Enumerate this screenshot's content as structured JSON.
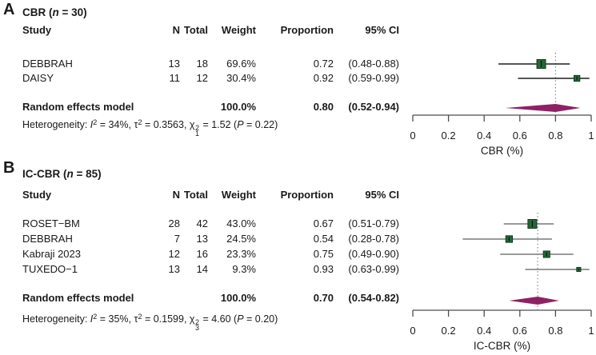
{
  "colors": {
    "square_fill": "#26663a",
    "square_border": "#0e3a1d",
    "marker_tick": "#111111",
    "diamond": "#8e2164",
    "reference_line": "#8a8a8a",
    "axis": "#4d4d4d",
    "text": "#1a1a1a"
  },
  "chart_data": [
    {
      "type": "forest",
      "panel_label": "A",
      "title_plain": "CBR (n = 30)",
      "title_segments": [
        {
          "t": "CBR ("
        },
        {
          "t": "n",
          "i": true
        },
        {
          "t": " = 30)"
        }
      ],
      "columns": [
        "Study",
        "N",
        "Total",
        "Weight",
        "Proportion",
        "95% CI"
      ],
      "rows": [
        {
          "study": "DEBBRAH",
          "n": "13",
          "total": "18",
          "weight": "69.6%",
          "proportion": "0.72",
          "ci": "(0.48-0.88)",
          "est": 0.72,
          "lo": 0.48,
          "hi": 0.88,
          "weight_pct": 69.6
        },
        {
          "study": "DAISY",
          "n": "11",
          "total": "12",
          "weight": "30.4%",
          "proportion": "0.92",
          "ci": "(0.59-0.99)",
          "est": 0.92,
          "lo": 0.59,
          "hi": 0.99,
          "weight_pct": 30.4
        }
      ],
      "pooled": {
        "label": "Random effects model",
        "weight": "100.0%",
        "proportion": "0.80",
        "ci": "(0.52-0.94)",
        "est": 0.8,
        "lo": 0.52,
        "hi": 0.94
      },
      "heterogeneity_plain": "Heterogeneity: I2 = 34%, t2 = 0.3563, chi2_1 = 1.52 (P = 0.22)",
      "heterogeneity_segments": [
        {
          "t": "Heterogeneity: "
        },
        {
          "t": "I",
          "i": true
        },
        {
          "sup": "2"
        },
        {
          "t": " = 34%, "
        },
        {
          "t": "τ"
        },
        {
          "sup": "2"
        },
        {
          "t": " = 0.3563, "
        },
        {
          "t": "χ"
        },
        {
          "stack": {
            "sup": "2",
            "sub": "1"
          }
        },
        {
          "t": " = 1.52 ("
        },
        {
          "t": "P",
          "i": true
        },
        {
          "t": " = 0.22)"
        }
      ],
      "axis": {
        "xlim": [
          0,
          1
        ],
        "ticks": [
          0,
          0.2,
          0.4,
          0.6,
          0.8,
          1
        ],
        "tick_labels": [
          "0",
          "0.2",
          "0.4",
          "0.6",
          "0.8",
          "1"
        ],
        "xlabel": "CBR (%)",
        "reference_value": 0.8
      },
      "ci_line_color": "#1f1f1f"
    },
    {
      "type": "forest",
      "panel_label": "B",
      "title_plain": "IC-CBR (n = 85)",
      "title_segments": [
        {
          "t": "IC-CBR ("
        },
        {
          "t": "n",
          "i": true
        },
        {
          "t": " = 85)"
        }
      ],
      "columns": [
        "Study",
        "N",
        "Total",
        "Weight",
        "Proportion",
        "95% CI"
      ],
      "rows": [
        {
          "study": "ROSET−BM",
          "n": "28",
          "total": "42",
          "weight": "43.0%",
          "proportion": "0.67",
          "ci": "(0.51-0.79)",
          "est": 0.67,
          "lo": 0.51,
          "hi": 0.79,
          "weight_pct": 43.0
        },
        {
          "study": "DEBBRAH",
          "n": "7",
          "total": "13",
          "weight": "24.5%",
          "proportion": "0.54",
          "ci": "(0.28-0.78)",
          "est": 0.54,
          "lo": 0.28,
          "hi": 0.78,
          "weight_pct": 24.5
        },
        {
          "study": "Kabraji 2023",
          "n": "12",
          "total": "16",
          "weight": "23.3%",
          "proportion": "0.75",
          "ci": "(0.49-0.90)",
          "est": 0.75,
          "lo": 0.49,
          "hi": 0.9,
          "weight_pct": 23.3
        },
        {
          "study": "TUXEDO−1",
          "n": "13",
          "total": "14",
          "weight": "9.3%",
          "proportion": "0.93",
          "ci": "(0.63-0.99)",
          "est": 0.93,
          "lo": 0.63,
          "hi": 0.99,
          "weight_pct": 9.3
        }
      ],
      "pooled": {
        "label": "Random effects model",
        "weight": "100.0%",
        "proportion": "0.70",
        "ci": "(0.54-0.82)",
        "est": 0.7,
        "lo": 0.54,
        "hi": 0.82
      },
      "heterogeneity_plain": "Heterogeneity: I2 = 35%, t2 = 0.1599, chi2_3 = 4.60 (P = 0.20)",
      "heterogeneity_segments": [
        {
          "t": "Heterogeneity: "
        },
        {
          "t": "I",
          "i": true
        },
        {
          "sup": "2"
        },
        {
          "t": " = 35%, "
        },
        {
          "t": "τ"
        },
        {
          "sup": "2"
        },
        {
          "t": " = 0.1599, "
        },
        {
          "t": "χ"
        },
        {
          "stack": {
            "sup": "2",
            "sub": "3"
          }
        },
        {
          "t": " = 4.60 ("
        },
        {
          "t": "P",
          "i": true
        },
        {
          "t": " = 0.20)"
        }
      ],
      "axis": {
        "xlim": [
          0,
          1
        ],
        "ticks": [
          0,
          0.2,
          0.4,
          0.6,
          0.8,
          1
        ],
        "tick_labels": [
          "0",
          "0.2",
          "0.4",
          "0.6",
          "0.8",
          "1"
        ],
        "xlabel": "IC-CBR (%)",
        "reference_value": 0.7
      },
      "ci_line_color": "#787878"
    }
  ]
}
